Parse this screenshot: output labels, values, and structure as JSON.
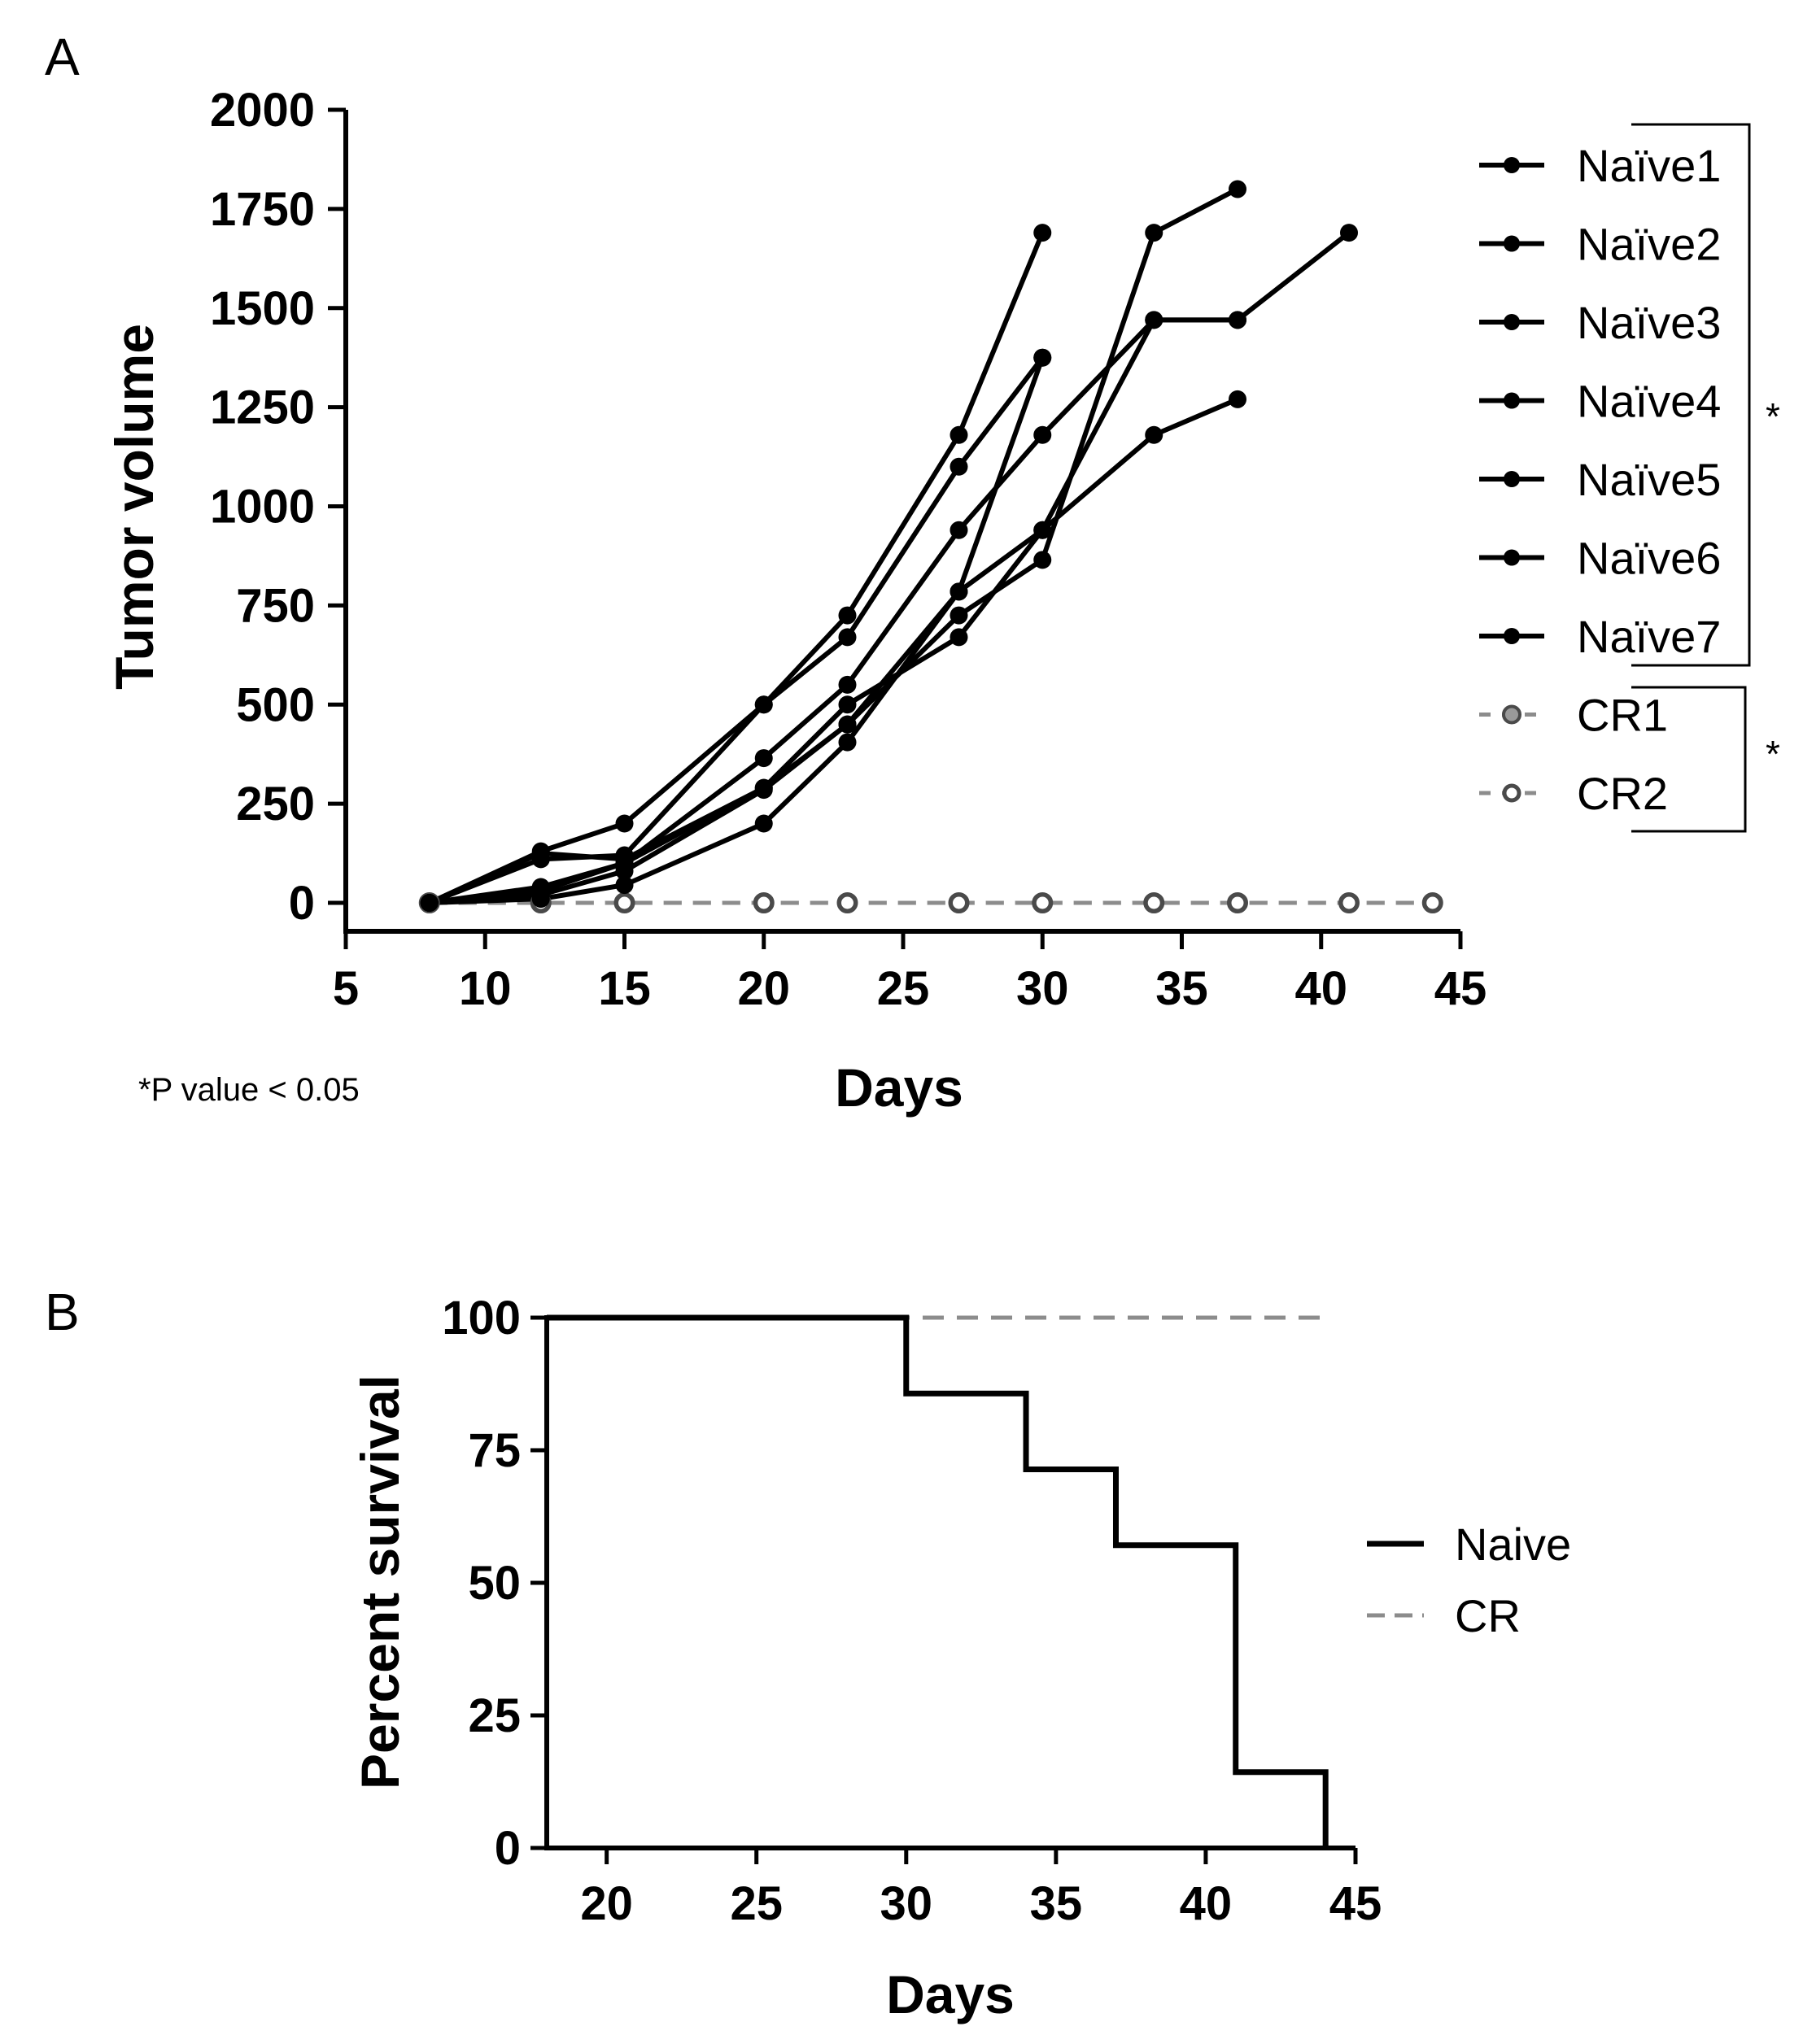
{
  "figure": {
    "panel_a_label": "A",
    "panel_b_label": "B",
    "footnote": "*P value < 0.05",
    "naive_significance": "*",
    "cr_significance": "*"
  },
  "chart_data": [
    {
      "type": "line",
      "panel": "A",
      "title": "",
      "xlabel": "Days",
      "ylabel": "Tumor volume",
      "xlim": [
        5,
        45
      ],
      "ylim": [
        0,
        2000
      ],
      "xticks": [
        "5",
        "10",
        "15",
        "20",
        "25",
        "30",
        "35",
        "40",
        "45"
      ],
      "yticks": [
        "0",
        "250",
        "500",
        "750",
        "1000",
        "1250",
        "1500",
        "1750",
        "2000"
      ],
      "legend_position": "right",
      "series": [
        {
          "name": "Naïve1",
          "style": "solid",
          "color": "#000000",
          "marker": "filled",
          "x": [
            8,
            12,
            15,
            20,
            23,
            27,
            30
          ],
          "y": [
            0,
            130,
            200,
            500,
            725,
            1180,
            1690
          ]
        },
        {
          "name": "Naïve2",
          "style": "solid",
          "color": "#000000",
          "marker": "filled",
          "x": [
            8,
            12,
            15,
            20,
            23,
            27,
            30
          ],
          "y": [
            0,
            110,
            120,
            500,
            670,
            1100,
            1375
          ]
        },
        {
          "name": "Naïve3",
          "style": "solid",
          "color": "#000000",
          "marker": "filled",
          "x": [
            8,
            12,
            15,
            20,
            23,
            27,
            30,
            34,
            37
          ],
          "y": [
            0,
            40,
            100,
            365,
            550,
            940,
            1180,
            1470,
            1470
          ]
        },
        {
          "name": "Naïve4",
          "style": "solid",
          "color": "#000000",
          "marker": "filled",
          "x": [
            8,
            12,
            15,
            20,
            23,
            27,
            30,
            34,
            37
          ],
          "y": [
            0,
            30,
            100,
            290,
            500,
            670,
            940,
            1180,
            1270
          ]
        },
        {
          "name": "Naïve5",
          "style": "solid",
          "color": "#000000",
          "marker": "filled",
          "x": [
            8,
            12,
            15,
            20,
            23,
            27,
            30,
            34,
            37
          ],
          "y": [
            0,
            20,
            80,
            285,
            450,
            725,
            865,
            1690,
            1800
          ]
        },
        {
          "name": "Naïve6",
          "style": "solid",
          "color": "#000000",
          "marker": "filled",
          "x": [
            8,
            12,
            15,
            20,
            23,
            27,
            30,
            34,
            37,
            41
          ],
          "y": [
            0,
            10,
            45,
            200,
            405,
            785,
            940,
            1470,
            1470,
            1690
          ]
        },
        {
          "name": "Naïve7",
          "style": "solid",
          "color": "#000000",
          "marker": "filled",
          "x": [
            8,
            12,
            15,
            20,
            23,
            27,
            30
          ],
          "y": [
            0,
            125,
            110,
            290,
            450,
            785,
            1375
          ]
        },
        {
          "name": "CR1",
          "style": "dashed",
          "color": "#8c8c8c",
          "marker": "gray",
          "x": [
            8,
            12,
            15,
            20,
            23,
            27,
            30,
            34,
            37,
            41,
            44
          ],
          "y": [
            0,
            0,
            0,
            0,
            0,
            0,
            0,
            0,
            0,
            0,
            0
          ]
        },
        {
          "name": "CR2",
          "style": "dashed",
          "color": "#8c8c8c",
          "marker": "open",
          "x": [
            8,
            12,
            15,
            20,
            23,
            27,
            30,
            34,
            37,
            41,
            44
          ],
          "y": [
            0,
            0,
            0,
            0,
            0,
            0,
            0,
            0,
            0,
            0,
            0
          ]
        }
      ]
    },
    {
      "type": "line",
      "subtype": "survival-step",
      "panel": "B",
      "title": "",
      "xlabel": "Days",
      "ylabel": "Percent survival",
      "xlim": [
        18,
        45
      ],
      "ylim": [
        0,
        100
      ],
      "xticks": [
        "20",
        "25",
        "30",
        "35",
        "40",
        "45"
      ],
      "yticks": [
        "0",
        "25",
        "50",
        "75",
        "100"
      ],
      "legend_position": "right",
      "series": [
        {
          "name": "Naive",
          "style": "solid",
          "color": "#000000",
          "x": [
            18,
            30,
            34,
            37,
            41,
            44
          ],
          "y": [
            100,
            85.7,
            71.4,
            57.1,
            14.3,
            0
          ]
        },
        {
          "name": "CR",
          "style": "dashed",
          "color": "#8c8c8c",
          "x": [
            18,
            44
          ],
          "y": [
            100,
            100
          ]
        }
      ]
    }
  ]
}
